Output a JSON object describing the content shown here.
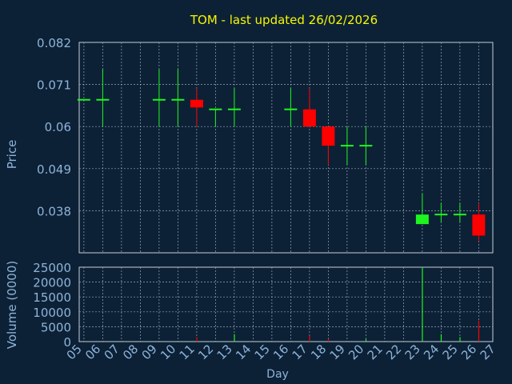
{
  "colors": {
    "background": "#0c2136",
    "title": "#f7f700",
    "axis_text": "#8fb3d9",
    "grid": "#9aa7b4",
    "frame": "#c5ced8",
    "up": "#1ef51e",
    "down": "#ff0000",
    "flat": "#1ef51e"
  },
  "chart_data": [
    {
      "type": "candlestick",
      "title": "TOM - last updated 26/02/2026",
      "xlabel": "",
      "ylabel": "Price",
      "ylim": [
        0.027,
        0.082
      ],
      "yticks": [
        0.082,
        0.071,
        0.06,
        0.049,
        0.038
      ],
      "grid": true,
      "candles": [
        {
          "day": "05",
          "open": 0.067,
          "high": 0.067,
          "low": 0.067,
          "close": 0.067
        },
        {
          "day": "06",
          "open": 0.067,
          "high": 0.075,
          "low": 0.06,
          "close": 0.067
        },
        {
          "day": "09",
          "open": 0.067,
          "high": 0.075,
          "low": 0.06,
          "close": 0.067
        },
        {
          "day": "10",
          "open": 0.067,
          "high": 0.075,
          "low": 0.06,
          "close": 0.067
        },
        {
          "day": "11",
          "open": 0.067,
          "high": 0.07,
          "low": 0.06,
          "close": 0.065
        },
        {
          "day": "12",
          "open": 0.0645,
          "high": 0.0645,
          "low": 0.06,
          "close": 0.0645
        },
        {
          "day": "13",
          "open": 0.0645,
          "high": 0.07,
          "low": 0.06,
          "close": 0.0645
        },
        {
          "day": "16",
          "open": 0.0645,
          "high": 0.07,
          "low": 0.06,
          "close": 0.0645
        },
        {
          "day": "17",
          "open": 0.0645,
          "high": 0.07,
          "low": 0.06,
          "close": 0.06
        },
        {
          "day": "18",
          "open": 0.06,
          "high": 0.06,
          "low": 0.05,
          "close": 0.055
        },
        {
          "day": "19",
          "open": 0.055,
          "high": 0.06,
          "low": 0.05,
          "close": 0.055
        },
        {
          "day": "20",
          "open": 0.055,
          "high": 0.06,
          "low": 0.05,
          "close": 0.055
        },
        {
          "day": "23",
          "open": 0.0345,
          "high": 0.0425,
          "low": 0.0345,
          "close": 0.037
        },
        {
          "day": "24",
          "open": 0.037,
          "high": 0.04,
          "low": 0.035,
          "close": 0.037
        },
        {
          "day": "25",
          "open": 0.037,
          "high": 0.04,
          "low": 0.035,
          "close": 0.037
        },
        {
          "day": "26",
          "open": 0.037,
          "high": 0.04,
          "low": 0.03,
          "close": 0.0315
        }
      ]
    },
    {
      "type": "bar",
      "title": "",
      "ylabel": "Volume (0000)",
      "xlabel": "Day",
      "ylim": [
        0,
        25000
      ],
      "yticks": [
        0,
        5000,
        10000,
        15000,
        20000,
        25000
      ],
      "grid": true,
      "categories": [
        "05",
        "06",
        "07",
        "08",
        "09",
        "10",
        "11",
        "12",
        "13",
        "14",
        "15",
        "16",
        "17",
        "18",
        "19",
        "20",
        "21",
        "22",
        "23",
        "24",
        "25",
        "26",
        "27"
      ],
      "bars": [
        {
          "day": "11",
          "value": 1500,
          "color": "down"
        },
        {
          "day": "13",
          "value": 2500,
          "color": "up"
        },
        {
          "day": "17",
          "value": 2000,
          "color": "down"
        },
        {
          "day": "18",
          "value": 1000,
          "color": "down"
        },
        {
          "day": "20",
          "value": 800,
          "color": "up"
        },
        {
          "day": "23",
          "value": 25000,
          "color": "up"
        },
        {
          "day": "24",
          "value": 2500,
          "color": "up"
        },
        {
          "day": "25",
          "value": 1500,
          "color": "up"
        },
        {
          "day": "26",
          "value": 7000,
          "color": "down"
        }
      ]
    }
  ]
}
